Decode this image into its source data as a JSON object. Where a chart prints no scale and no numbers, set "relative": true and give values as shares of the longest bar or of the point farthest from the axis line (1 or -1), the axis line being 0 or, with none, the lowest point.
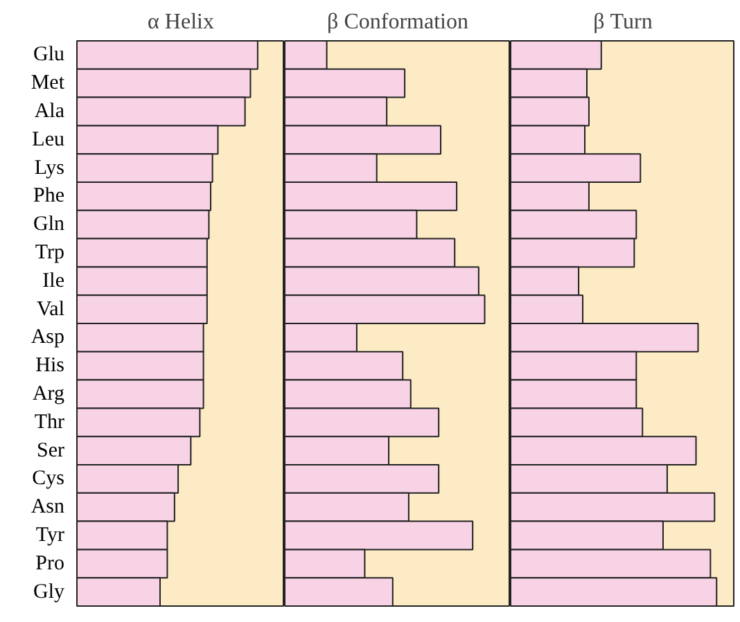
{
  "chart_data": [
    {
      "type": "bar",
      "orientation": "horizontal",
      "relative": true,
      "title": "α Helix",
      "tick_labels": "y",
      "categories": [
        "Glu",
        "Met",
        "Ala",
        "Leu",
        "Lys",
        "Phe",
        "Gln",
        "Trp",
        "Ile",
        "Val",
        "Asp",
        "His",
        "Arg",
        "Thr",
        "Ser",
        "Cys",
        "Asn",
        "Tyr",
        "Pro",
        "Gly"
      ],
      "series": [
        {
          "color": "#f8d3e6",
          "values": [
            1,
            0.96,
            0.93,
            0.78,
            0.75,
            0.74,
            0.73,
            0.72,
            0.72,
            0.72,
            0.7,
            0.7,
            0.7,
            0.68,
            0.63,
            0.56,
            0.54,
            0.5,
            0.5,
            0.46
          ]
        }
      ]
    },
    {
      "type": "bar",
      "orientation": "horizontal",
      "relative": true,
      "title": "β Conformation",
      "tick_labels": false,
      "categories": [
        null,
        null,
        null,
        null,
        null,
        null,
        null,
        null,
        null,
        null,
        null,
        null,
        null,
        null,
        null,
        null,
        null,
        null,
        null,
        null
      ],
      "series": [
        {
          "color": "#f8d3e6",
          "values": [
            0.21,
            0.6,
            0.51,
            0.78,
            0.46,
            0.86,
            0.66,
            0.85,
            0.97,
            1,
            0.36,
            0.59,
            0.63,
            0.77,
            0.52,
            0.77,
            0.62,
            0.94,
            0.4,
            0.54
          ]
        }
      ]
    },
    {
      "type": "bar",
      "orientation": "horizontal",
      "relative": true,
      "title": "β Turn",
      "tick_labels": false,
      "categories": [
        null,
        null,
        null,
        null,
        null,
        null,
        null,
        null,
        null,
        null,
        null,
        null,
        null,
        null,
        null,
        null,
        null,
        null,
        null,
        null
      ],
      "series": [
        {
          "color": "#f8d3e6",
          "values": [
            0.44,
            0.37,
            0.38,
            0.36,
            0.63,
            0.38,
            0.61,
            0.6,
            0.33,
            0.35,
            0.91,
            0.61,
            0.61,
            0.64,
            0.9,
            0.76,
            0.99,
            0.74,
            0.97,
            1
          ]
        }
      ]
    }
  ]
}
